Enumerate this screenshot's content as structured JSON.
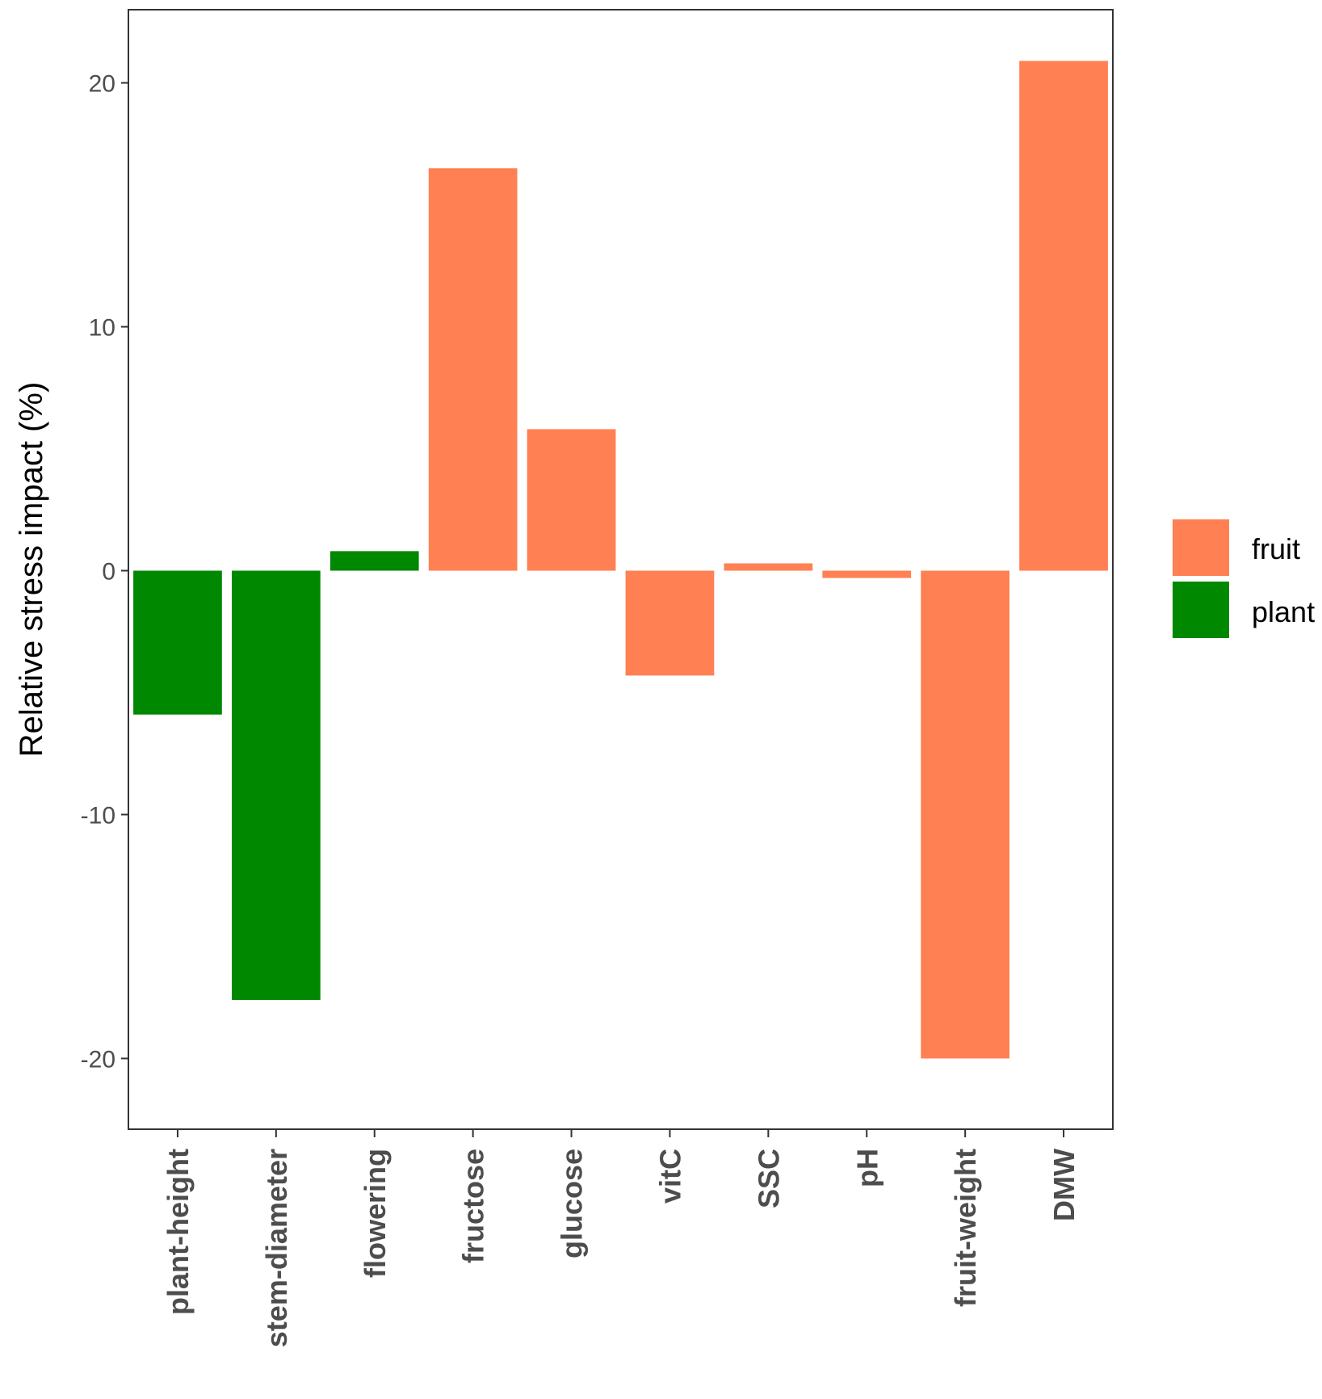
{
  "chart_data": {
    "type": "bar",
    "title": "",
    "xlabel": "",
    "ylabel": "Relative stress impact (%)",
    "ylim": [
      -22.9,
      23.0
    ],
    "yticks": [
      20,
      10,
      0,
      -10,
      -20
    ],
    "ytick_labels": [
      "20",
      "10",
      "0",
      "-10",
      "-20"
    ],
    "categories": [
      "plant-height",
      "stem-diameter",
      "flowering",
      "fructose",
      "glucose",
      "vitC",
      "SSC",
      "pH",
      "fruit-weight",
      "DMW"
    ],
    "values": [
      -5.9,
      -17.6,
      0.8,
      16.5,
      5.8,
      -4.3,
      0.3,
      -0.3,
      -20.0,
      20.9
    ],
    "groups": [
      "plant",
      "plant",
      "plant",
      "fruit",
      "fruit",
      "fruit",
      "fruit",
      "fruit",
      "fruit",
      "fruit"
    ],
    "legend": {
      "position": "right",
      "items": [
        {
          "key": "fruit",
          "label": "fruit",
          "color": "#FF8052"
        },
        {
          "key": "plant",
          "label": "plant",
          "color": "#008800"
        }
      ]
    }
  }
}
